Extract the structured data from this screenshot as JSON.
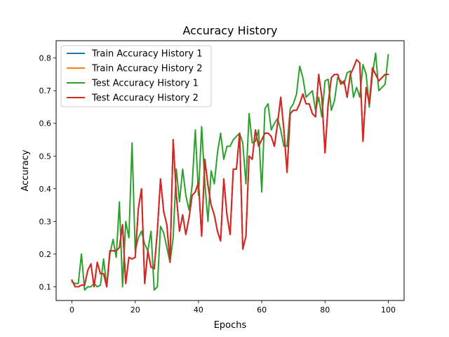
{
  "chart_data": {
    "type": "line",
    "title": "Accuracy History",
    "xlabel": "Epochs",
    "ylabel": "Accuracy",
    "xlim": [
      -5,
      105
    ],
    "ylim": [
      0.058,
      0.853
    ],
    "xticks": [
      0,
      20,
      40,
      60,
      80,
      100
    ],
    "yticks": [
      0.1,
      0.2,
      0.3,
      0.4,
      0.5,
      0.6,
      0.7,
      0.8
    ],
    "xtick_labels": [
      "0",
      "20",
      "40",
      "60",
      "80",
      "100"
    ],
    "ytick_labels": [
      "0.1",
      "0.2",
      "0.3",
      "0.4",
      "0.5",
      "0.6",
      "0.7",
      "0.8"
    ],
    "grid": false,
    "legend": "top-left",
    "x": [
      0,
      1,
      2,
      3,
      4,
      5,
      6,
      7,
      8,
      9,
      10,
      11,
      12,
      13,
      14,
      15,
      16,
      17,
      18,
      19,
      20,
      21,
      22,
      23,
      24,
      25,
      26,
      27,
      28,
      29,
      30,
      31,
      32,
      33,
      34,
      35,
      36,
      37,
      38,
      39,
      40,
      41,
      42,
      43,
      44,
      45,
      46,
      47,
      48,
      49,
      50,
      51,
      52,
      53,
      54,
      55,
      56,
      57,
      58,
      59,
      60,
      61,
      62,
      63,
      64,
      65,
      66,
      67,
      68,
      69,
      70,
      71,
      72,
      73,
      74,
      75,
      76,
      77,
      78,
      79,
      80,
      81,
      82,
      83,
      84,
      85,
      86,
      87,
      88,
      89,
      90,
      91,
      92,
      93,
      94,
      95,
      96,
      97,
      98,
      99,
      100
    ],
    "series": [
      {
        "name": "Train Accuracy History 1",
        "color": "#1f77b4",
        "values": [
          0.12,
          0.1,
          0.1,
          0.105,
          0.105,
          0.15,
          0.17,
          0.1,
          0.175,
          0.14,
          0.14,
          0.1,
          0.21,
          0.21,
          0.21,
          0.22,
          0.29,
          0.11,
          0.19,
          0.185,
          0.19,
          0.34,
          0.4,
          0.11,
          0.21,
          0.16,
          0.155,
          0.27,
          0.43,
          0.33,
          0.29,
          0.175,
          0.55,
          0.38,
          0.27,
          0.32,
          0.26,
          0.31,
          0.38,
          0.39,
          0.42,
          0.255,
          0.49,
          0.41,
          0.35,
          0.32,
          0.27,
          0.24,
          0.43,
          0.32,
          0.26,
          0.46,
          0.46,
          0.57,
          0.215,
          0.255,
          0.5,
          0.49,
          0.58,
          0.53,
          0.55,
          0.57,
          0.57,
          0.56,
          0.53,
          0.6,
          0.68,
          0.58,
          0.45,
          0.63,
          0.64,
          0.64,
          0.66,
          0.69,
          0.66,
          0.66,
          0.63,
          0.62,
          0.75,
          0.68,
          0.51,
          0.66,
          0.74,
          0.75,
          0.75,
          0.72,
          0.73,
          0.68,
          0.75,
          0.77,
          0.795,
          0.785,
          0.545,
          0.71,
          0.66,
          0.77,
          0.75,
          0.73,
          0.74,
          0.75,
          0.75
        ]
      },
      {
        "name": "Train Accuracy History 2",
        "color": "#ff7f0e",
        "values": [
          0.12,
          0.1,
          0.1,
          0.105,
          0.105,
          0.15,
          0.17,
          0.1,
          0.175,
          0.14,
          0.14,
          0.1,
          0.21,
          0.21,
          0.21,
          0.22,
          0.29,
          0.11,
          0.19,
          0.185,
          0.19,
          0.34,
          0.4,
          0.11,
          0.21,
          0.16,
          0.155,
          0.27,
          0.43,
          0.33,
          0.29,
          0.175,
          0.55,
          0.38,
          0.27,
          0.32,
          0.26,
          0.31,
          0.38,
          0.39,
          0.42,
          0.255,
          0.49,
          0.41,
          0.35,
          0.32,
          0.27,
          0.24,
          0.43,
          0.32,
          0.26,
          0.46,
          0.46,
          0.57,
          0.215,
          0.255,
          0.5,
          0.49,
          0.58,
          0.53,
          0.55,
          0.57,
          0.57,
          0.56,
          0.53,
          0.6,
          0.68,
          0.58,
          0.45,
          0.63,
          0.64,
          0.64,
          0.66,
          0.69,
          0.66,
          0.66,
          0.63,
          0.62,
          0.75,
          0.68,
          0.51,
          0.66,
          0.74,
          0.75,
          0.75,
          0.72,
          0.73,
          0.68,
          0.75,
          0.77,
          0.795,
          0.785,
          0.545,
          0.71,
          0.66,
          0.77,
          0.75,
          0.73,
          0.74,
          0.75,
          0.75
        ]
      },
      {
        "name": "Test Accuracy History 1",
        "color": "#2ca02c",
        "values": [
          0.115,
          0.11,
          0.11,
          0.2,
          0.09,
          0.1,
          0.1,
          0.11,
          0.1,
          0.105,
          0.185,
          0.1,
          0.2,
          0.245,
          0.19,
          0.36,
          0.1,
          0.3,
          0.25,
          0.54,
          0.21,
          0.25,
          0.27,
          0.23,
          0.21,
          0.27,
          0.09,
          0.1,
          0.285,
          0.265,
          0.22,
          0.175,
          0.25,
          0.46,
          0.36,
          0.46,
          0.38,
          0.335,
          0.41,
          0.58,
          0.38,
          0.59,
          0.42,
          0.3,
          0.455,
          0.415,
          0.51,
          0.57,
          0.49,
          0.53,
          0.53,
          0.55,
          0.56,
          0.57,
          0.54,
          0.415,
          0.63,
          0.54,
          0.545,
          0.58,
          0.39,
          0.645,
          0.66,
          0.58,
          0.6,
          0.615,
          0.58,
          0.53,
          0.53,
          0.645,
          0.66,
          0.69,
          0.775,
          0.74,
          0.68,
          0.69,
          0.7,
          0.64,
          0.68,
          0.62,
          0.73,
          0.735,
          0.64,
          0.67,
          0.74,
          0.73,
          0.72,
          0.755,
          0.76,
          0.68,
          0.71,
          0.68,
          0.78,
          0.75,
          0.65,
          0.75,
          0.815,
          0.7,
          0.71,
          0.72,
          0.81
        ]
      },
      {
        "name": "Test Accuracy History 2",
        "color": "#d62728",
        "values": [
          0.12,
          0.1,
          0.1,
          0.105,
          0.105,
          0.15,
          0.17,
          0.1,
          0.175,
          0.14,
          0.14,
          0.1,
          0.21,
          0.21,
          0.21,
          0.22,
          0.29,
          0.11,
          0.19,
          0.185,
          0.19,
          0.34,
          0.4,
          0.11,
          0.21,
          0.16,
          0.155,
          0.27,
          0.43,
          0.33,
          0.29,
          0.175,
          0.55,
          0.38,
          0.27,
          0.32,
          0.26,
          0.31,
          0.38,
          0.39,
          0.42,
          0.255,
          0.49,
          0.41,
          0.35,
          0.32,
          0.27,
          0.24,
          0.43,
          0.32,
          0.26,
          0.46,
          0.46,
          0.57,
          0.215,
          0.255,
          0.5,
          0.49,
          0.58,
          0.53,
          0.55,
          0.57,
          0.57,
          0.56,
          0.53,
          0.6,
          0.68,
          0.58,
          0.45,
          0.63,
          0.64,
          0.64,
          0.66,
          0.69,
          0.66,
          0.66,
          0.63,
          0.62,
          0.75,
          0.68,
          0.51,
          0.66,
          0.74,
          0.75,
          0.75,
          0.72,
          0.73,
          0.68,
          0.75,
          0.77,
          0.795,
          0.785,
          0.545,
          0.71,
          0.66,
          0.77,
          0.75,
          0.73,
          0.74,
          0.75,
          0.75
        ]
      }
    ]
  }
}
